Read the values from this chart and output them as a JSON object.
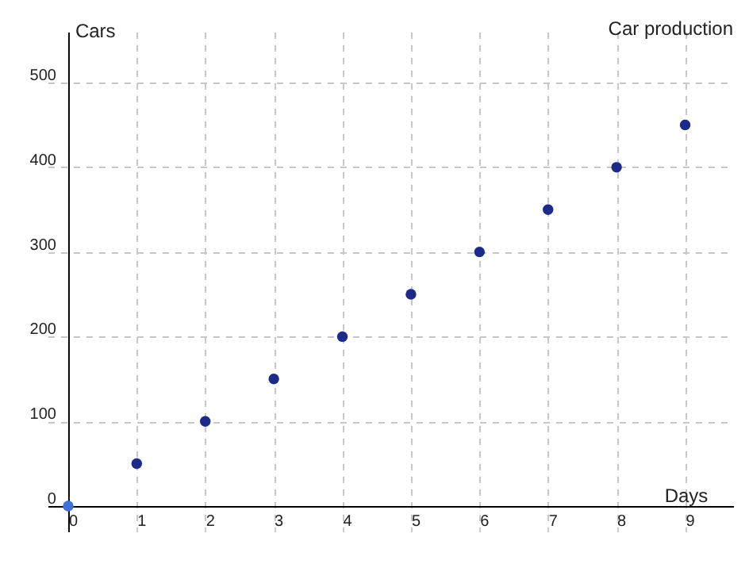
{
  "chart_data": {
    "type": "scatter",
    "title": "Car production",
    "xlabel": "Days",
    "ylabel": "Cars",
    "x": [
      0,
      1,
      2,
      3,
      4,
      5,
      6,
      7,
      8,
      9
    ],
    "values": [
      0,
      50,
      100,
      150,
      200,
      250,
      300,
      350,
      400,
      450
    ],
    "colors": [
      "#3f6fd8",
      "#1c2a8a",
      "#1c2a8a",
      "#1c2a8a",
      "#1c2a8a",
      "#1c2a8a",
      "#1c2a8a",
      "#1c2a8a",
      "#1c2a8a",
      "#1c2a8a"
    ],
    "xlim": [
      -0.3,
      9.7
    ],
    "ylim": [
      -30,
      560
    ],
    "xticks": [
      0,
      1,
      2,
      3,
      4,
      5,
      6,
      7,
      8,
      9
    ],
    "yticks": [
      0,
      100,
      200,
      300,
      400,
      500
    ],
    "grid": true,
    "marker": "circle"
  }
}
